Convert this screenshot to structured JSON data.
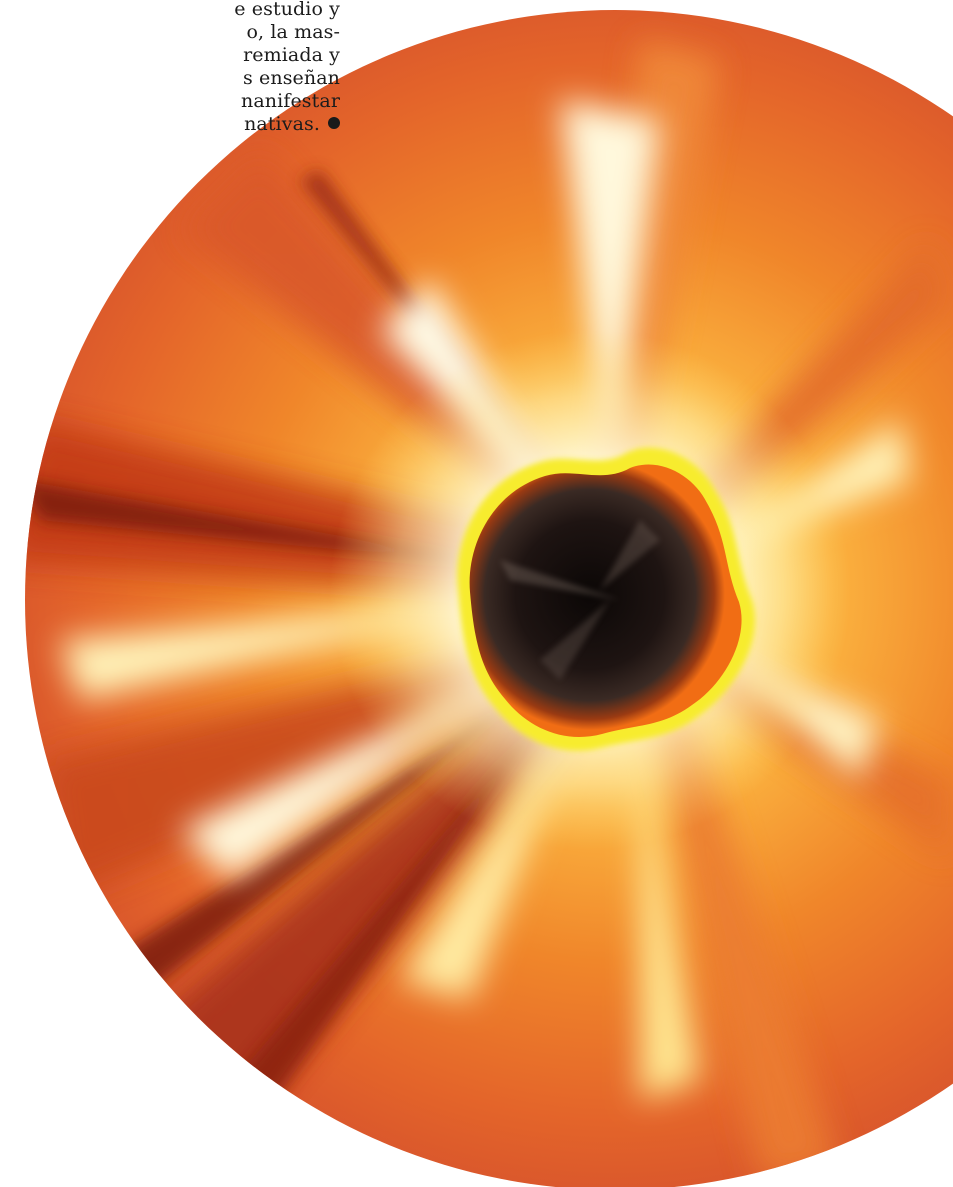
{
  "article": {
    "lines": [
      "e estudio y",
      "o, la mas-",
      "remiada y",
      "s enseñan",
      "nanifestar",
      "nativas."
    ]
  },
  "illustration": {
    "subject": "fiery-vortex",
    "colors": {
      "core": "#130c0a",
      "ring": "#f7ec2e",
      "glow": "#fffbe6",
      "flame": "#f59a2a",
      "ember": "#d2421a",
      "shadow": "#7a1d0e"
    }
  }
}
